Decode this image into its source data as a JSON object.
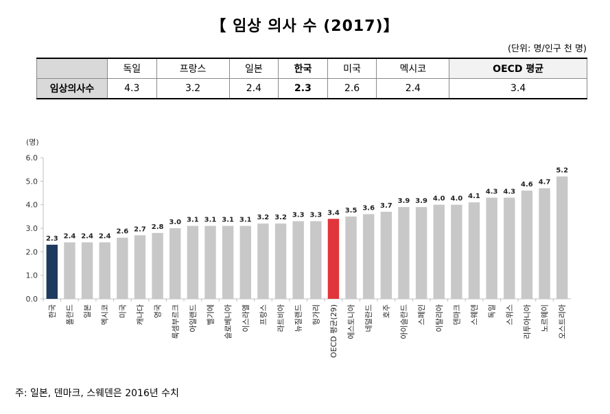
{
  "title": "【 임상 의사 수 (2017)】",
  "unit_note": "(단위: 명/인구 천 명)",
  "table": {
    "headers": [
      "독일",
      "프랑스",
      "일본",
      "한국",
      "미국",
      "멕시코",
      "OECD 평균"
    ],
    "row_label": "임상의사수",
    "values": [
      "4.3",
      "3.2",
      "2.4",
      "2.3",
      "2.6",
      "2.4",
      "3.4"
    ]
  },
  "chart_data": {
    "type": "bar",
    "ylabel": "(명)",
    "ylim": [
      0,
      6
    ],
    "yticks": [
      "0.0",
      "1.0",
      "2.0",
      "3.0",
      "4.0",
      "5.0",
      "6.0"
    ],
    "categories": [
      "한국",
      "폴란드",
      "일본",
      "멕시코",
      "미국",
      "캐나다",
      "영국",
      "룩셈부르크",
      "아일랜드",
      "벨기에",
      "슬로베니아",
      "이스라엘",
      "프랑스",
      "라트비아",
      "뉴질랜드",
      "헝가리",
      "OECD 평균(29)",
      "에스토니아",
      "네덜란드",
      "호주",
      "아이슬란드",
      "스페인",
      "이탈리아",
      "덴마크",
      "스웨덴",
      "독일",
      "스위스",
      "리투아니아",
      "노르웨이",
      "오스트리아"
    ],
    "values": [
      2.3,
      2.4,
      2.4,
      2.4,
      2.6,
      2.7,
      2.8,
      3.0,
      3.1,
      3.1,
      3.1,
      3.1,
      3.2,
      3.2,
      3.3,
      3.3,
      3.4,
      3.5,
      3.6,
      3.7,
      3.9,
      3.9,
      4.0,
      4.0,
      4.1,
      4.3,
      4.3,
      4.6,
      4.7,
      5.2
    ],
    "labels": [
      "2.3",
      "2.4",
      "2.4",
      "2.4",
      "2.6",
      "2.7",
      "2.8",
      "3.0",
      "3.1",
      "3.1",
      "3.1",
      "3.1",
      "3.2",
      "3.2",
      "3.3",
      "3.3",
      "3.4",
      "3.5",
      "3.6",
      "3.7",
      "3.9",
      "3.9",
      "4.0",
      "4.0",
      "4.1",
      "4.3",
      "4.3",
      "4.6",
      "4.7",
      "5.2"
    ],
    "colors": {
      "default": "#c8c8c8",
      "korea": "#1f3a5f",
      "oecd": "#e0363b"
    },
    "grid": false
  },
  "footnote": "주: 일본, 덴마크, 스웨덴은 2016년 수치"
}
